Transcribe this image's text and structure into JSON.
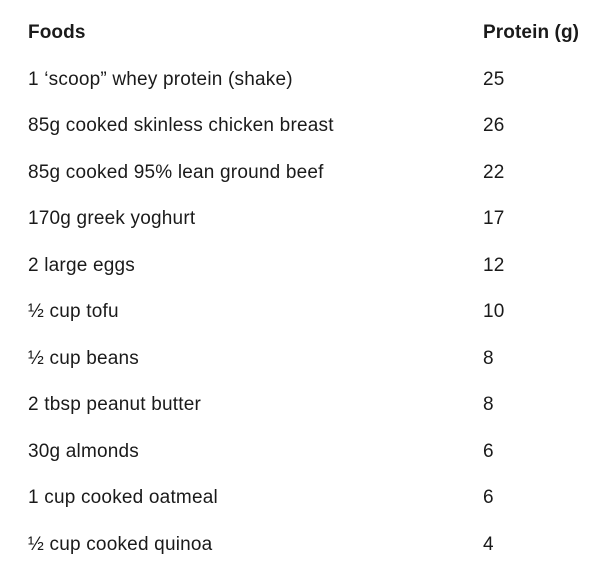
{
  "colors": {
    "background": "#ffffff",
    "text": "#1a1a1a"
  },
  "table": {
    "header": {
      "foods_label": "Foods",
      "protein_label": "Protein (g)"
    },
    "rows": [
      {
        "food": "1 ‘scoop” whey protein (shake)",
        "protein": "25"
      },
      {
        "food": "85g cooked skinless chicken breast",
        "protein": "26"
      },
      {
        "food": "85g cooked 95% lean ground beef",
        "protein": "22"
      },
      {
        "food": "170g greek yoghurt",
        "protein": "17"
      },
      {
        "food": "2 large eggs",
        "protein": "12"
      },
      {
        "food": "½ cup tofu",
        "protein": "10"
      },
      {
        "food": "½ cup beans",
        "protein": "8"
      },
      {
        "food": "2 tbsp peanut butter",
        "protein": "8"
      },
      {
        "food": "30g almonds",
        "protein": "6"
      },
      {
        "food": "1 cup cooked oatmeal",
        "protein": "6"
      },
      {
        "food": "½ cup cooked quinoa",
        "protein": "4"
      }
    ]
  }
}
